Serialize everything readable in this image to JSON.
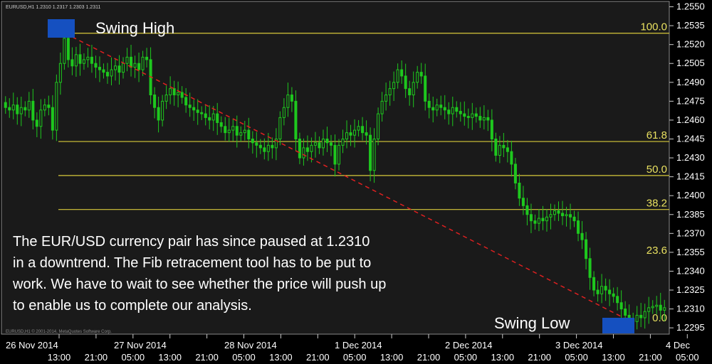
{
  "window": {
    "title": "EURUSD,H1  1.2310 1.2317 1.2303 1.2311"
  },
  "annotations": {
    "swing_high": "Swing High",
    "swing_low": "Swing Low",
    "description_lines": [
      "The EUR/USD currency pair has since paused at 1.2310",
      "in a downtrend. The Fib retracement tool has to be put to",
      "work. We have to wait to see whether the price will push up",
      "to enable us to complete our analysis."
    ],
    "copyright": "EURUSD,H1 © 2001-2014, MetaQuotes Software Corp."
  },
  "colors": {
    "background": "#000000",
    "plot_background": "#1a1a1a",
    "candle": "#1ec81e",
    "fib_line": "#d8c93a",
    "fib_label": "#e8e060",
    "trend_line": "#e02020",
    "swing_box": "#1550c0",
    "axis_text": "#ffffff"
  },
  "chart_data": {
    "type": "candlestick",
    "symbol": "EURUSD",
    "ylim": [
      1.229,
      1.2552
    ],
    "y_ticks": [
      "1.2550",
      "1.2535",
      "1.2520",
      "1.2505",
      "1.2490",
      "1.2475",
      "1.2460",
      "1.2445",
      "1.2430",
      "1.2415",
      "1.2400",
      "1.2385",
      "1.2370",
      "1.2355",
      "1.2340",
      "1.2325",
      "1.2310",
      "1.2295"
    ],
    "x_date_labels": [
      "26 Nov 2014",
      "27 Nov 2014",
      "28 Nov 2014",
      "1 Dec 2014",
      "2 Dec 2014",
      "3 Dec 2014",
      "4 Dec"
    ],
    "x_time_labels": [
      "13:00",
      "21:00",
      "05:00",
      "13:00",
      "21:00",
      "05:00",
      "13:00",
      "21:00",
      "05:00",
      "13:00",
      "21:00",
      "05:00",
      "13:00",
      "21:00",
      "05:00",
      "13:00",
      "21:00",
      "05:00"
    ],
    "fib_levels": [
      {
        "label": "100.0",
        "price": 1.2529
      },
      {
        "label": "61.8",
        "price": 1.2443
      },
      {
        "label": "50.0",
        "price": 1.2416
      },
      {
        "label": "38.2",
        "price": 1.2389
      },
      {
        "label": "23.6",
        "price": 1.2355
      },
      {
        "label": "0.0",
        "price": 1.2303
      }
    ],
    "closes": [
      1.247,
      1.2468,
      1.2472,
      1.2465,
      1.247,
      1.2468,
      1.2475,
      1.246,
      1.2455,
      1.2468,
      1.2472,
      1.247,
      1.2452,
      1.249,
      1.2505,
      1.2525,
      1.2508,
      1.2503,
      1.2512,
      1.2505,
      1.2508,
      1.251,
      1.2505,
      1.2502,
      1.25,
      1.2498,
      1.2495,
      1.25,
      1.2503,
      1.2498,
      1.2505,
      1.251,
      1.2502,
      1.2505,
      1.25,
      1.251,
      1.2508,
      1.248,
      1.247,
      1.246,
      1.2475,
      1.248,
      1.2485,
      1.248,
      1.2482,
      1.2478,
      1.2472,
      1.247,
      1.2468,
      1.2466,
      1.2465,
      1.2462,
      1.246,
      1.2465,
      1.2458,
      1.2455,
      1.245,
      1.2452,
      1.2455,
      1.2448,
      1.245,
      1.2452,
      1.2445,
      1.2442,
      1.244,
      1.2438,
      1.2435,
      1.244,
      1.2438,
      1.2445,
      1.2462,
      1.247,
      1.248,
      1.2475,
      1.2445,
      1.243,
      1.2438,
      1.2435,
      1.244,
      1.2442,
      1.2438,
      1.2445,
      1.2442,
      1.244,
      1.2425,
      1.244,
      1.2445,
      1.245,
      1.2448,
      1.2452,
      1.2455,
      1.245,
      1.2448,
      1.242,
      1.2445,
      1.2465,
      1.2475,
      1.248,
      1.2485,
      1.249,
      1.25,
      1.2495,
      1.2485,
      1.248,
      1.249,
      1.2498,
      1.2495,
      1.2475,
      1.247,
      1.2468,
      1.2472,
      1.247,
      1.2468,
      1.2465,
      1.247,
      1.2467,
      1.2465,
      1.2463,
      1.2462,
      1.2465,
      1.2463,
      1.246,
      1.2462,
      1.246,
      1.2445,
      1.2432,
      1.244,
      1.2438,
      1.2435,
      1.2425,
      1.241,
      1.2398,
      1.2392,
      1.2385,
      1.238,
      1.2378,
      1.2382,
      1.238,
      1.2383,
      1.2385,
      1.2388,
      1.2386,
      1.2384,
      1.2385,
      1.2383,
      1.238,
      1.237,
      1.2365,
      1.235,
      1.2335,
      1.2325,
      1.2322,
      1.2328,
      1.2325,
      1.2322,
      1.232,
      1.2315,
      1.231,
      1.2305,
      1.2302,
      1.23,
      1.2305,
      1.2303,
      1.2308,
      1.2311,
      1.2312,
      1.2313,
      1.2309,
      1.2311
    ]
  }
}
